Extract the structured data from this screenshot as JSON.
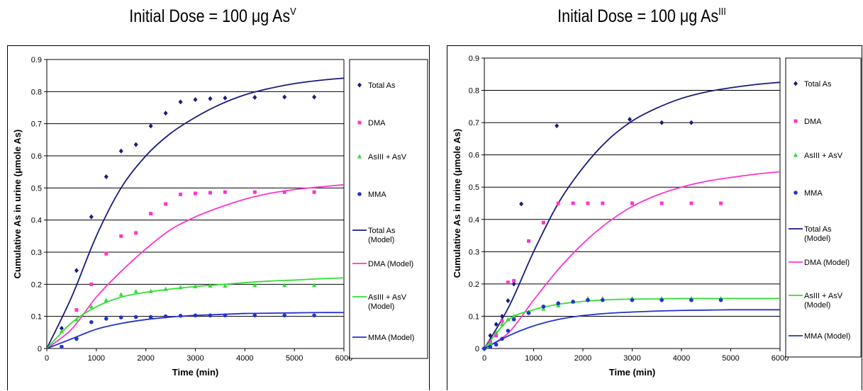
{
  "titles": {
    "left": {
      "main": "Initial Dose = 100 μg As",
      "sup": "V"
    },
    "right": {
      "main": "Initial Dose = 100 μg As",
      "sup": "III"
    }
  },
  "chart_data": [
    {
      "type": "scatter",
      "xlabel": "Time (min)",
      "ylabel": "Cumulative As in urine (μmole As)",
      "xlim": [
        0,
        6000
      ],
      "ylim": [
        0,
        0.9
      ],
      "xticks": [
        0,
        1000,
        2000,
        3000,
        4000,
        5000,
        6000
      ],
      "yticks": [
        0,
        0.1,
        0.2,
        0.3,
        0.4,
        0.5,
        0.6,
        0.7,
        0.8,
        0.9
      ],
      "ytick_labels": [
        "0",
        "0.1",
        "0.2",
        "0.3",
        "0.4",
        "0.5",
        "0.6",
        "0.7",
        "0.8",
        "0.9"
      ],
      "grid": "horizontal",
      "legend_position": "right",
      "legend": [
        "Total As",
        "DMA",
        "AsIII + AsV",
        "MMA",
        "Total As (Model)",
        "DMA (Model)",
        "AsIII + AsV (Model)",
        "MMA (Model)"
      ],
      "series": [
        {
          "name": "Total As",
          "marker": "diamond",
          "color": "#1a1a80",
          "x": [
            300,
            600,
            900,
            1200,
            1500,
            1800,
            2100,
            2400,
            2700,
            3000,
            3300,
            3600,
            4200,
            4800,
            5400
          ],
          "y": [
            0.063,
            0.243,
            0.41,
            0.535,
            0.615,
            0.635,
            0.693,
            0.733,
            0.768,
            0.775,
            0.778,
            0.78,
            0.782,
            0.783,
            0.783
          ]
        },
        {
          "name": "DMA",
          "marker": "square",
          "color": "#ff33cc",
          "x": [
            300,
            600,
            900,
            1200,
            1500,
            1800,
            2100,
            2400,
            2700,
            3000,
            3300,
            3600,
            4200,
            4800,
            5400
          ],
          "y": [
            0.005,
            0.12,
            0.2,
            0.295,
            0.35,
            0.36,
            0.42,
            0.45,
            0.48,
            0.483,
            0.485,
            0.487,
            0.487,
            0.487,
            0.487
          ]
        },
        {
          "name": "AsIII + AsV",
          "marker": "triangle",
          "color": "#33dd33",
          "x": [
            300,
            600,
            900,
            1200,
            1500,
            1800,
            2100,
            2400,
            2700,
            3000,
            3300,
            3600,
            4200,
            4800,
            5400
          ],
          "y": [
            0.053,
            0.09,
            0.13,
            0.15,
            0.168,
            0.178,
            0.178,
            0.185,
            0.19,
            0.193,
            0.195,
            0.195,
            0.197,
            0.197,
            0.197
          ]
        },
        {
          "name": "MMA",
          "marker": "circle",
          "color": "#2233cc",
          "x": [
            300,
            600,
            900,
            1200,
            1500,
            1800,
            2100,
            2400,
            2700,
            3000,
            3300,
            3600,
            4200,
            4800,
            5400
          ],
          "y": [
            0.005,
            0.03,
            0.082,
            0.093,
            0.097,
            0.098,
            0.098,
            0.1,
            0.102,
            0.103,
            0.103,
            0.103,
            0.103,
            0.103,
            0.103
          ]
        },
        {
          "name": "Total As (Model)",
          "line": true,
          "color": "#1a1a80",
          "x": [
            0,
            500,
            1000,
            1500,
            2000,
            2500,
            3000,
            3500,
            4000,
            4500,
            5000,
            5500,
            6000
          ],
          "y": [
            0,
            0.16,
            0.35,
            0.5,
            0.6,
            0.67,
            0.72,
            0.76,
            0.79,
            0.81,
            0.825,
            0.835,
            0.842
          ]
        },
        {
          "name": "DMA (Model)",
          "line": true,
          "color": "#ff33cc",
          "x": [
            0,
            500,
            1000,
            1500,
            2000,
            2500,
            3000,
            3500,
            4000,
            4500,
            5000,
            5500,
            6000
          ],
          "y": [
            0,
            0.06,
            0.16,
            0.24,
            0.31,
            0.37,
            0.41,
            0.44,
            0.465,
            0.483,
            0.495,
            0.503,
            0.51
          ]
        },
        {
          "name": "AsIII + AsV (Model)",
          "line": true,
          "color": "#33dd33",
          "x": [
            0,
            500,
            1000,
            1500,
            2000,
            2500,
            3000,
            3500,
            4000,
            4500,
            5000,
            5500,
            6000
          ],
          "y": [
            0,
            0.08,
            0.13,
            0.16,
            0.175,
            0.185,
            0.193,
            0.199,
            0.205,
            0.21,
            0.213,
            0.217,
            0.22
          ]
        },
        {
          "name": "MMA (Model)",
          "line": true,
          "color": "#2233cc",
          "x": [
            0,
            500,
            1000,
            1500,
            2000,
            2500,
            3000,
            3500,
            4000,
            4500,
            5000,
            5500,
            6000
          ],
          "y": [
            0,
            0.03,
            0.06,
            0.078,
            0.09,
            0.098,
            0.103,
            0.106,
            0.109,
            0.11,
            0.111,
            0.112,
            0.112
          ]
        }
      ]
    },
    {
      "type": "scatter",
      "xlabel": "Time (min)",
      "ylabel": "Cumulative As in urine (μmole As)",
      "xlim": [
        0,
        6000
      ],
      "ylim": [
        0,
        0.9
      ],
      "xticks": [
        0,
        1000,
        2000,
        3000,
        4000,
        5000,
        6000
      ],
      "yticks": [
        0,
        0.1,
        0.2,
        0.3,
        0.4,
        0.5,
        0.6,
        0.7,
        0.8,
        0.9
      ],
      "ytick_labels": [
        "0",
        "0.1",
        "0.2",
        "0.3",
        "0.4",
        "0.5",
        "0.6",
        "0.7",
        "0.8",
        "0.9"
      ],
      "grid": "horizontal",
      "legend_position": "right",
      "legend": [
        "Total As",
        "DMA",
        "AsIII + AsV",
        "MMA",
        "Total As (Model)",
        "DMA (Model)",
        "AsIII + AsV (Model)",
        "MMA (Model)"
      ],
      "series": [
        {
          "name": "Total As",
          "marker": "diamond",
          "color": "#1a1a80",
          "x": [
            0,
            120,
            240,
            360,
            480,
            600,
            750,
            1470,
            2950,
            3600,
            4200
          ],
          "y": [
            0,
            0.04,
            0.075,
            0.1,
            0.148,
            0.2,
            0.448,
            0.69,
            0.71,
            0.7,
            0.7
          ]
        },
        {
          "name": "DMA",
          "marker": "square",
          "color": "#ff33cc",
          "x": [
            0,
            120,
            240,
            360,
            480,
            600,
            900,
            1200,
            1500,
            1800,
            2100,
            2400,
            3000,
            3600,
            4200,
            4800
          ],
          "y": [
            0,
            0.02,
            0.04,
            0.085,
            0.205,
            0.21,
            0.333,
            0.39,
            0.45,
            0.45,
            0.45,
            0.45,
            0.45,
            0.45,
            0.45,
            0.45
          ]
        },
        {
          "name": "AsIII + AsV",
          "marker": "triangle",
          "color": "#33dd33",
          "x": [
            0,
            120,
            240,
            360,
            480,
            600,
            900,
            1200,
            1500,
            1800,
            2100,
            2400,
            3000,
            3600,
            4200,
            4800
          ],
          "y": [
            0,
            0.015,
            0.05,
            0.075,
            0.09,
            0.1,
            0.113,
            0.123,
            0.133,
            0.145,
            0.155,
            0.155,
            0.155,
            0.155,
            0.155,
            0.155
          ]
        },
        {
          "name": "MMA",
          "marker": "circle",
          "color": "#2233cc",
          "x": [
            0,
            120,
            240,
            360,
            480,
            600,
            900,
            1200,
            1500,
            1800,
            2100,
            2400,
            3000,
            3600,
            4200,
            4800
          ],
          "y": [
            0,
            0.005,
            0.012,
            0.03,
            0.055,
            0.09,
            0.11,
            0.13,
            0.14,
            0.145,
            0.15,
            0.15,
            0.15,
            0.15,
            0.15,
            0.15
          ]
        },
        {
          "name": "Total As (Model)",
          "line": true,
          "color": "#1a1a80",
          "x": [
            0,
            500,
            1000,
            1500,
            2000,
            2500,
            3000,
            3500,
            4000,
            4500,
            5000,
            5500,
            6000
          ],
          "y": [
            0,
            0.13,
            0.3,
            0.45,
            0.56,
            0.645,
            0.705,
            0.745,
            0.775,
            0.795,
            0.808,
            0.818,
            0.825
          ]
        },
        {
          "name": "DMA (Model)",
          "line": true,
          "color": "#ff33cc",
          "x": [
            0,
            500,
            1000,
            1500,
            2000,
            2500,
            3000,
            3500,
            4000,
            4500,
            5000,
            5500,
            6000
          ],
          "y": [
            0,
            0.05,
            0.15,
            0.245,
            0.325,
            0.39,
            0.44,
            0.475,
            0.5,
            0.518,
            0.53,
            0.54,
            0.548
          ]
        },
        {
          "name": "AsIII + AsV (Model)",
          "line": true,
          "color": "#33dd33",
          "x": [
            0,
            500,
            1000,
            1500,
            2000,
            2500,
            3000,
            3500,
            4000,
            4500,
            5000,
            5500,
            6000
          ],
          "y": [
            0,
            0.09,
            0.12,
            0.137,
            0.146,
            0.151,
            0.153,
            0.154,
            0.155,
            0.155,
            0.155,
            0.155,
            0.155
          ]
        },
        {
          "name": "MMA (Model)",
          "line": true,
          "color": "#2233cc",
          "x": [
            0,
            500,
            1000,
            1500,
            2000,
            2500,
            3000,
            3500,
            4000,
            4500,
            5000,
            5500,
            6000
          ],
          "y": [
            0,
            0.04,
            0.07,
            0.09,
            0.102,
            0.109,
            0.113,
            0.116,
            0.118,
            0.119,
            0.12,
            0.12,
            0.12
          ]
        }
      ]
    }
  ]
}
